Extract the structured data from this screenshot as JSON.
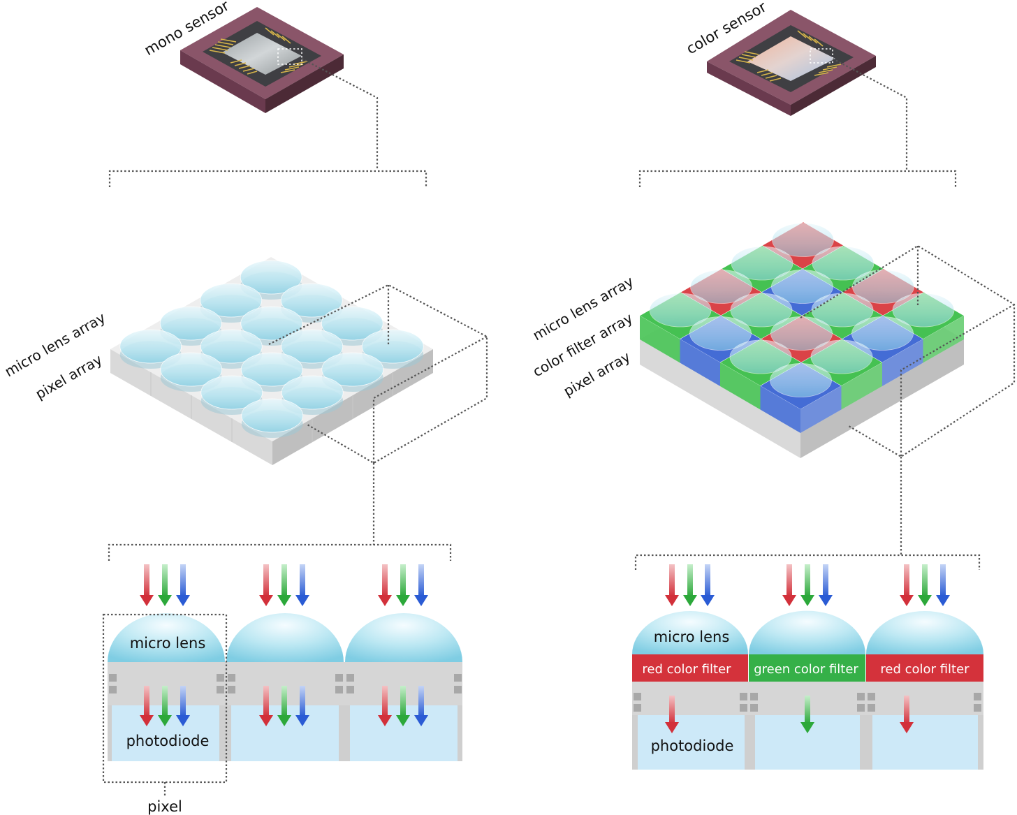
{
  "mono": {
    "sensor_label": "mono sensor",
    "micro_lens_array_label": "micro lens array",
    "pixel_array_label": "pixel array",
    "micro_lens_label": "micro lens",
    "photodiode_label": "photodiode",
    "pixel_label": "pixel"
  },
  "color": {
    "sensor_label": "color sensor",
    "micro_lens_array_label": "micro lens array",
    "color_filter_array_label": "color filter array",
    "pixel_array_label": "pixel array",
    "micro_lens_label": "micro lens",
    "filters": [
      "red color filter",
      "green color filter",
      "red color filter"
    ],
    "photodiode_label": "photodiode"
  },
  "colors": {
    "red": "#d93a3f",
    "green": "#3cbf4a",
    "blue": "#3b66d4",
    "lens": "#bfe8f3",
    "photodiode": "#cde9f8",
    "chip_frame": "#8a5569"
  }
}
